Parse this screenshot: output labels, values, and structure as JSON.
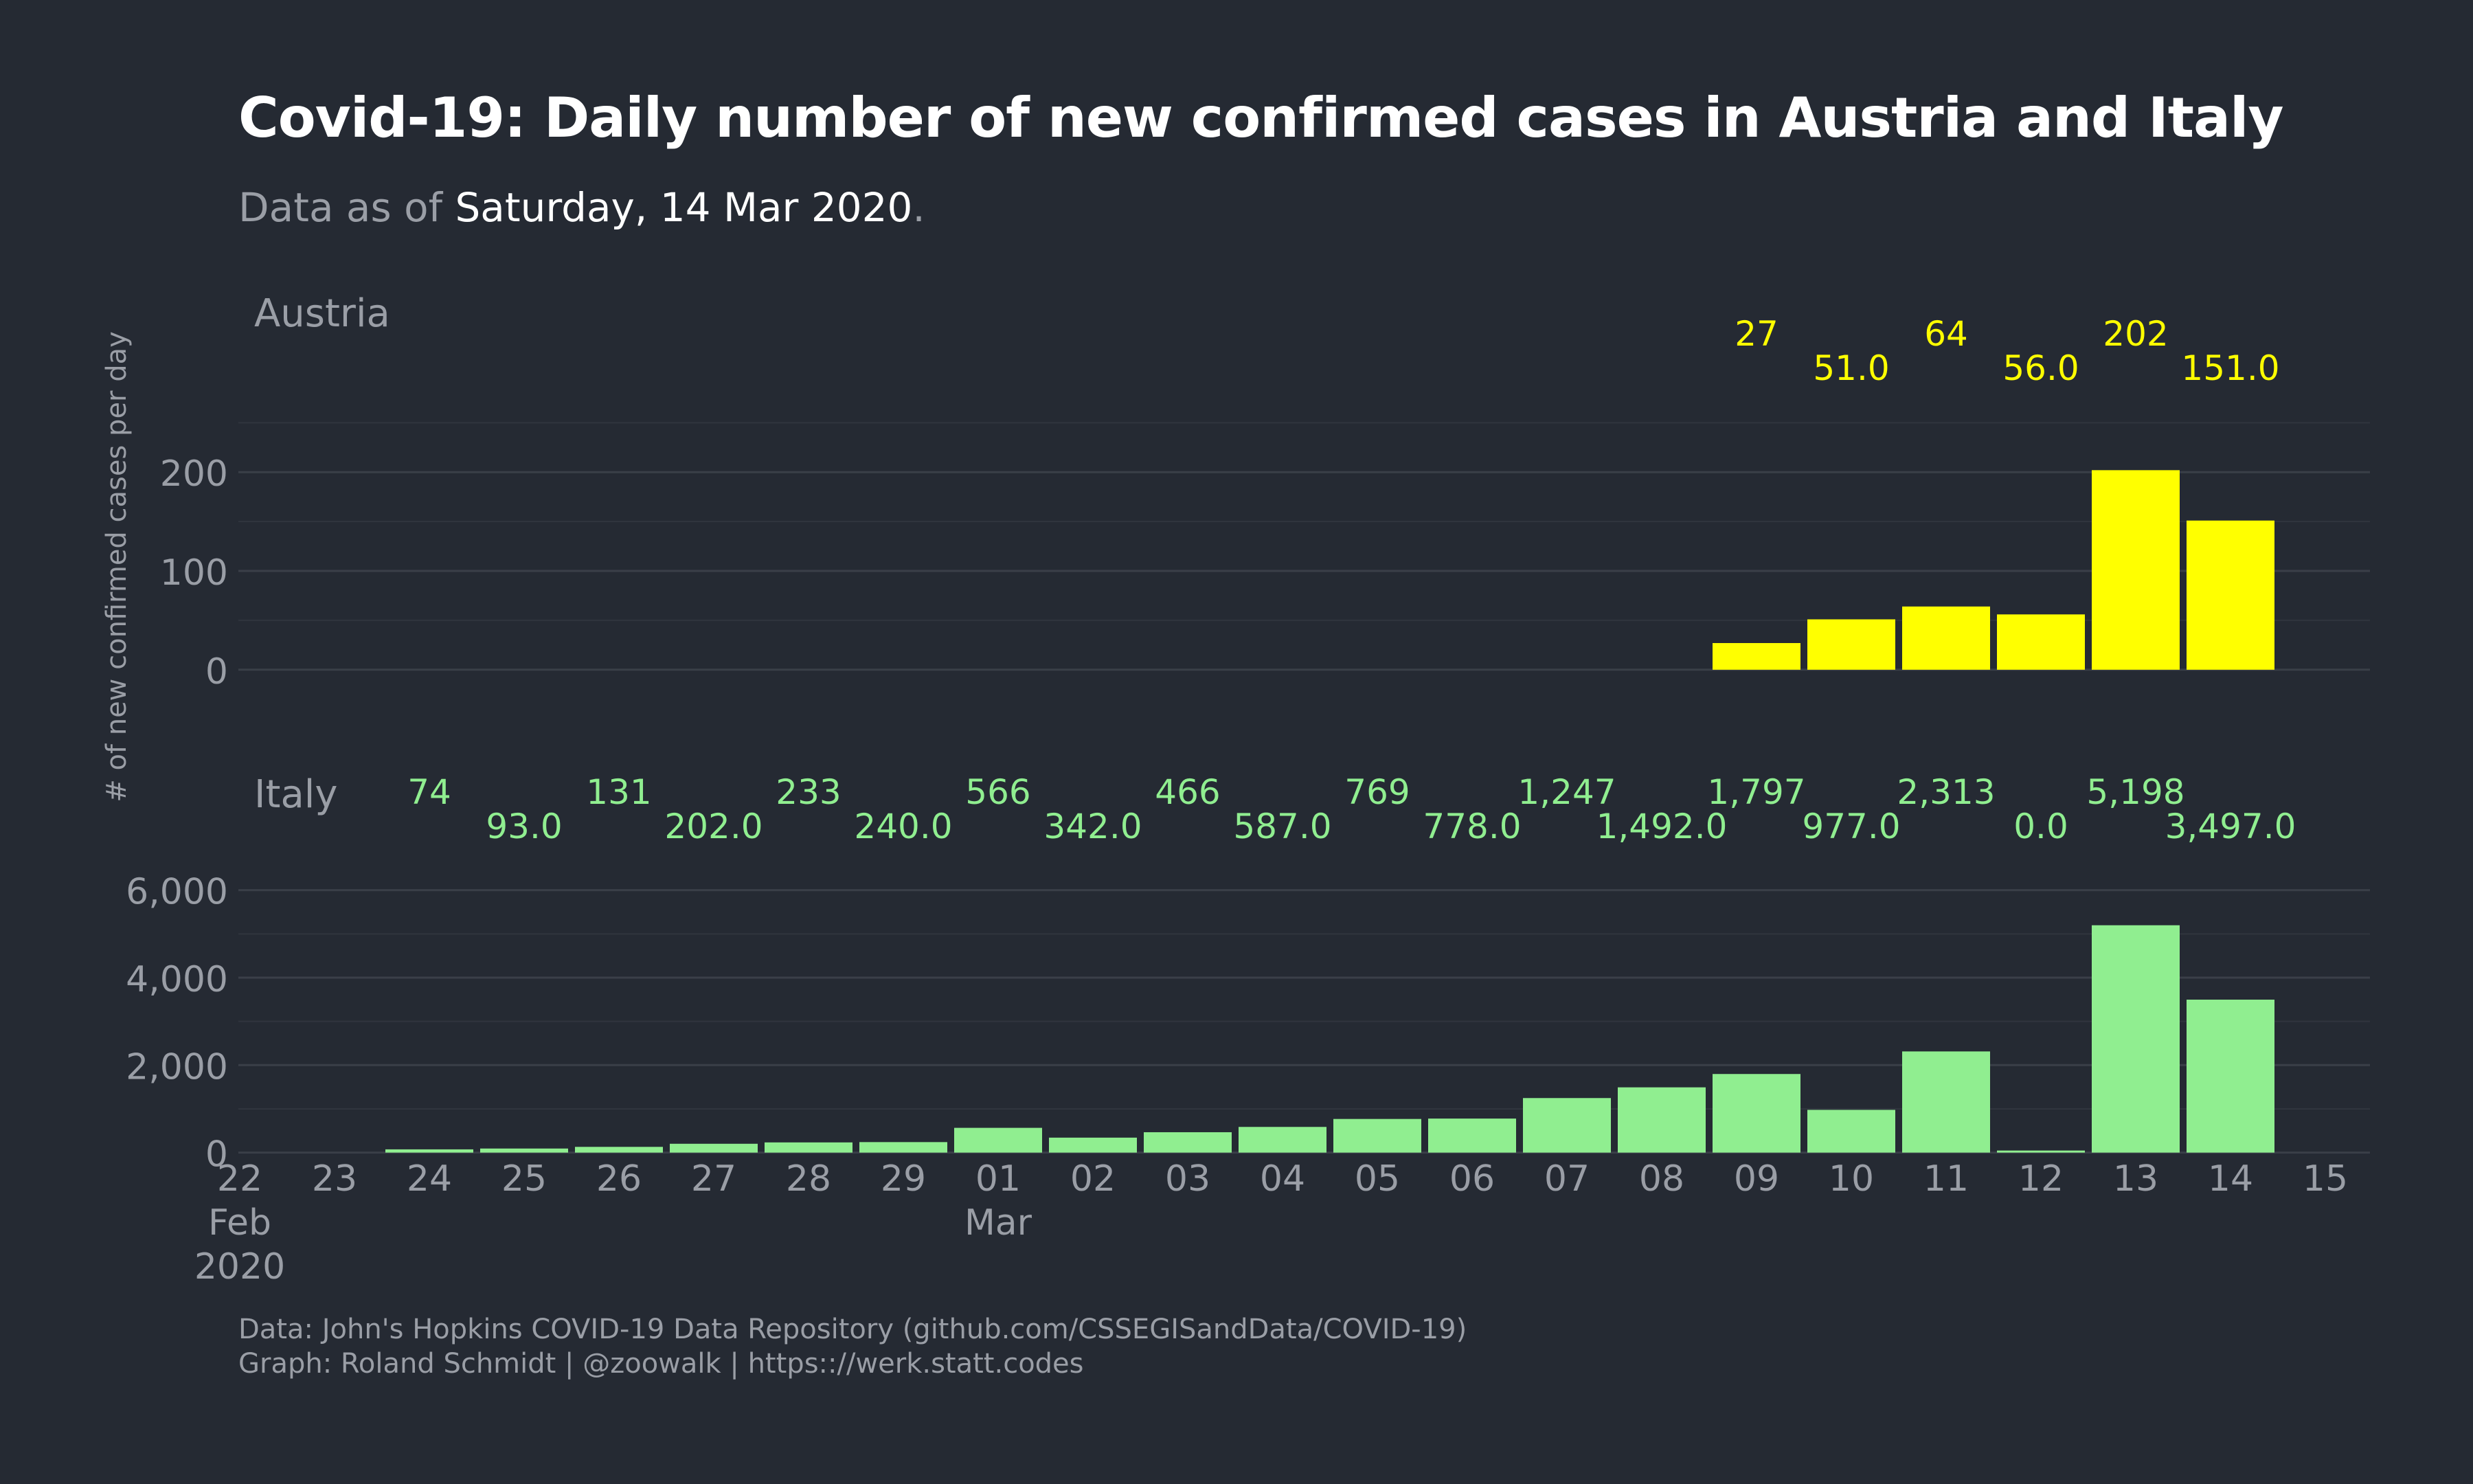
{
  "title": "Covid-19: Daily number of new confirmed cases in Austria and Italy",
  "subtitle": {
    "prefix": "Data as of ",
    "date": "Saturday, 14 Mar 2020",
    "suffix": "."
  },
  "caption": {
    "line1": "Data: John's Hopkins  COVID-19 Data Repository (github.com/CSSEGISandData/COVID-19)",
    "line2": "Graph: Roland Schmidt | @zoowalk | https:://werk.statt.codes"
  },
  "colors": {
    "background": "#252a33",
    "austria": "#ffff00",
    "italy": "#90ee90",
    "grid": "#3a3f48",
    "axis_text": "#9a9ea6"
  },
  "chart_data": {
    "type": "bar",
    "ylabel": "# of new confirmed cases per day",
    "x_tick_labels": [
      "22",
      "23",
      "24",
      "25",
      "26",
      "27",
      "28",
      "29",
      "01",
      "02",
      "03",
      "04",
      "05",
      "06",
      "07",
      "08",
      "09",
      "10",
      "11",
      "12",
      "13",
      "14",
      "15"
    ],
    "x_month_labels": [
      {
        "tick": "22",
        "lines": [
          "Feb",
          "2020"
        ]
      },
      {
        "tick": "01",
        "lines": [
          "Mar"
        ]
      }
    ],
    "panels": [
      {
        "name": "Austria",
        "ylim": [
          -5,
          285
        ],
        "yticks": [
          0,
          100,
          200
        ],
        "ytick_labels": [
          "0",
          "100",
          "200"
        ],
        "bars": [
          {
            "date": "09",
            "value": 27,
            "label": "27"
          },
          {
            "date": "10",
            "value": 51,
            "label": "51.0"
          },
          {
            "date": "11",
            "value": 64,
            "label": "64"
          },
          {
            "date": "12",
            "value": 56,
            "label": "56.0"
          },
          {
            "date": "13",
            "value": 202,
            "label": "202"
          },
          {
            "date": "14",
            "value": 151,
            "label": "151.0"
          }
        ]
      },
      {
        "name": "Italy",
        "ylim": [
          -100,
          7000
        ],
        "yticks": [
          0,
          2000,
          4000,
          6000
        ],
        "ytick_labels": [
          "0",
          "2,000",
          "4,000",
          "6,000"
        ],
        "bars": [
          {
            "date": "24",
            "value": 74,
            "label": "74"
          },
          {
            "date": "25",
            "value": 93,
            "label": "93.0"
          },
          {
            "date": "26",
            "value": 131,
            "label": "131"
          },
          {
            "date": "27",
            "value": 202,
            "label": "202.0"
          },
          {
            "date": "28",
            "value": 233,
            "label": "233"
          },
          {
            "date": "29",
            "value": 240,
            "label": "240.0"
          },
          {
            "date": "01",
            "value": 566,
            "label": "566"
          },
          {
            "date": "02",
            "value": 342,
            "label": "342.0"
          },
          {
            "date": "03",
            "value": 466,
            "label": "466"
          },
          {
            "date": "04",
            "value": 587,
            "label": "587.0"
          },
          {
            "date": "05",
            "value": 769,
            "label": "769"
          },
          {
            "date": "06",
            "value": 778,
            "label": "778.0"
          },
          {
            "date": "07",
            "value": 1247,
            "label": "1,247"
          },
          {
            "date": "08",
            "value": 1492,
            "label": "1,492.0"
          },
          {
            "date": "09",
            "value": 1797,
            "label": "1,797"
          },
          {
            "date": "10",
            "value": 977,
            "label": "977.0"
          },
          {
            "date": "11",
            "value": 2313,
            "label": "2,313"
          },
          {
            "date": "12",
            "value": 0,
            "label": "0.0"
          },
          {
            "date": "13",
            "value": 5198,
            "label": "5,198"
          },
          {
            "date": "14",
            "value": 3497,
            "label": "3,497.0"
          }
        ]
      }
    ]
  }
}
